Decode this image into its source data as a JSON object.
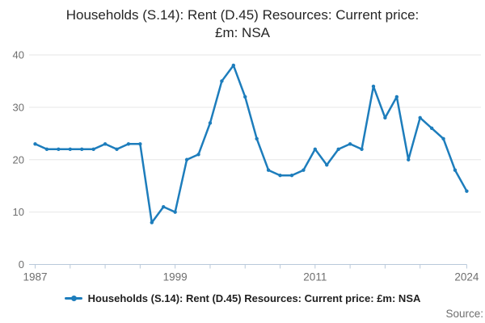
{
  "title": {
    "line1": "Households (S.14): Rent (D.45) Resources: Current price:",
    "line2": "£m: NSA"
  },
  "legend": {
    "label": "Households (S.14): Rent (D.45) Resources: Current price: £m: NSA"
  },
  "source": {
    "label": "Source:"
  },
  "colors": {
    "line": "#1d7dbc",
    "marker": "#1d7dbc",
    "grid": "#e6e6e6",
    "axis": "#b9c9da",
    "tick": "#b9c9da",
    "axis_label": "#6e6e6e",
    "title_text": "#262626",
    "legend_text": "#1f1f1f",
    "source_text": "#6e6e6e"
  },
  "chart_data": {
    "type": "line",
    "title": "Households (S.14): Rent (D.45) Resources: Current price: £m: NSA",
    "xlabel": "",
    "ylabel": "",
    "x": [
      1987,
      1988,
      1989,
      1990,
      1991,
      1992,
      1993,
      1994,
      1995,
      1996,
      1997,
      1998,
      1999,
      2000,
      2001,
      2002,
      2003,
      2004,
      2005,
      2006,
      2007,
      2008,
      2009,
      2010,
      2011,
      2012,
      2013,
      2014,
      2015,
      2016,
      2017,
      2018,
      2019,
      2020,
      2021,
      2022,
      2023,
      2024
    ],
    "series": [
      {
        "name": "Households (S.14): Rent (D.45) Resources: Current price: £m: NSA",
        "values": [
          23,
          22,
          22,
          22,
          22,
          22,
          23,
          22,
          23,
          23,
          8,
          11,
          10,
          20,
          21,
          27,
          35,
          38,
          32,
          24,
          18,
          17,
          17,
          18,
          22,
          19,
          22,
          23,
          22,
          34,
          28,
          32,
          20,
          28,
          26,
          24,
          18,
          14
        ]
      }
    ],
    "ylim": [
      0,
      40
    ],
    "yticks": [
      0,
      10,
      20,
      30,
      40
    ],
    "xticks_labeled": [
      1987,
      1999,
      2011,
      2024
    ],
    "xticks_minor_every_years": 3,
    "grid": "horizontal",
    "markers": true,
    "legend_position": "bottom"
  }
}
